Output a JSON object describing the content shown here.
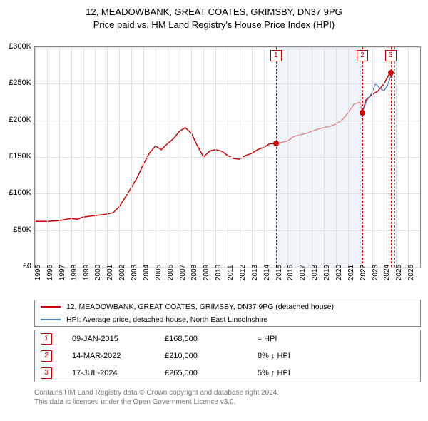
{
  "title_line1": "12, MEADOWBANK, GREAT COATES, GRIMSBY, DN37 9PG",
  "title_line2": "Price paid vs. HM Land Registry's House Price Index (HPI)",
  "chart": {
    "type": "line",
    "x_min": 1995,
    "x_max": 2027,
    "y_min": 0,
    "y_max": 300000,
    "y_tick_step": 50000,
    "y_prefix": "£",
    "y_suffix": "K",
    "y_ticks": [
      "£0",
      "£50K",
      "£100K",
      "£150K",
      "£200K",
      "£250K",
      "£300K"
    ],
    "x_ticks": [
      1995,
      1996,
      1997,
      1998,
      1999,
      2000,
      2001,
      2002,
      2003,
      2004,
      2005,
      2006,
      2007,
      2008,
      2009,
      2010,
      2011,
      2012,
      2013,
      2014,
      2015,
      2016,
      2017,
      2018,
      2019,
      2020,
      2021,
      2022,
      2023,
      2024,
      2025,
      2026
    ],
    "background_color": "#ffffff",
    "grid_color": "#e0e0e0",
    "border_color": "#888888",
    "shade_bands": [
      {
        "from": 2015.02,
        "to": 2022.2,
        "color": "#e6ecf5"
      }
    ],
    "today_line": {
      "x": 2024.85,
      "color": "#777777",
      "dash": true
    },
    "series": [
      {
        "name": "12, MEADOWBANK, GREAT COATES, GRIMSBY, DN37 9PG (detached house)",
        "color": "#cc0000",
        "width": 1.5,
        "points": [
          [
            1995,
            62000
          ],
          [
            1996,
            62000
          ],
          [
            1997,
            63000
          ],
          [
            1998,
            66000
          ],
          [
            1998.5,
            65000
          ],
          [
            1999,
            68000
          ],
          [
            2000,
            70000
          ],
          [
            2001,
            72000
          ],
          [
            2001.5,
            74000
          ],
          [
            2002,
            82000
          ],
          [
            2002.5,
            95000
          ],
          [
            2003,
            108000
          ],
          [
            2003.5,
            122000
          ],
          [
            2004,
            140000
          ],
          [
            2004.5,
            155000
          ],
          [
            2005,
            165000
          ],
          [
            2005.5,
            160000
          ],
          [
            2006,
            168000
          ],
          [
            2006.5,
            175000
          ],
          [
            2007,
            185000
          ],
          [
            2007.5,
            190000
          ],
          [
            2008,
            182000
          ],
          [
            2008.5,
            165000
          ],
          [
            2009,
            150000
          ],
          [
            2009.5,
            158000
          ],
          [
            2010,
            160000
          ],
          [
            2010.5,
            158000
          ],
          [
            2011,
            152000
          ],
          [
            2011.5,
            148000
          ],
          [
            2012,
            147000
          ],
          [
            2012.5,
            152000
          ],
          [
            2013,
            155000
          ],
          [
            2013.5,
            160000
          ],
          [
            2014,
            163000
          ],
          [
            2014.5,
            168000
          ],
          [
            2015,
            168500
          ],
          [
            2015.5,
            170000
          ],
          [
            2016,
            172000
          ],
          [
            2016.5,
            178000
          ],
          [
            2017,
            180000
          ],
          [
            2017.5,
            182000
          ],
          [
            2018,
            185000
          ],
          [
            2018.5,
            188000
          ],
          [
            2019,
            190000
          ],
          [
            2019.5,
            192000
          ],
          [
            2020,
            195000
          ],
          [
            2020.5,
            200000
          ],
          [
            2021,
            210000
          ],
          [
            2021.5,
            222000
          ],
          [
            2022,
            225000
          ],
          [
            2022.2,
            210000
          ],
          [
            2022.5,
            228000
          ],
          [
            2023,
            235000
          ],
          [
            2023.5,
            240000
          ],
          [
            2024,
            250000
          ],
          [
            2024.5,
            265000
          ],
          [
            2024.55,
            265000
          ]
        ]
      },
      {
        "name": "HPI: Average price, detached house, North East Lincolnshire",
        "color": "#4a7ec8",
        "width": 1.3,
        "points": [
          [
            2022.2,
            210000
          ],
          [
            2022.5,
            225000
          ],
          [
            2023,
            238000
          ],
          [
            2023.3,
            250000
          ],
          [
            2023.6,
            245000
          ],
          [
            2024,
            240000
          ],
          [
            2024.3,
            248000
          ],
          [
            2024.55,
            260000
          ],
          [
            2024.7,
            258000
          ]
        ]
      }
    ],
    "event_markers": [
      {
        "n": "1",
        "x": 2015.02,
        "price_y": 168500
      },
      {
        "n": "2",
        "x": 2022.2,
        "price_y": 210000
      },
      {
        "n": "3",
        "x": 2024.55,
        "price_y": 265000
      }
    ]
  },
  "legend": {
    "items": [
      {
        "color": "#cc0000",
        "label": "12, MEADOWBANK, GREAT COATES, GRIMSBY, DN37 9PG (detached house)"
      },
      {
        "color": "#4a7ec8",
        "label": "HPI: Average price, detached house, North East Lincolnshire"
      }
    ]
  },
  "events_table": {
    "rows": [
      {
        "n": "1",
        "date": "09-JAN-2015",
        "price": "£168,500",
        "compare": "≈ HPI"
      },
      {
        "n": "2",
        "date": "14-MAR-2022",
        "price": "£210,000",
        "compare": "8% ↓ HPI"
      },
      {
        "n": "3",
        "date": "17-JUL-2024",
        "price": "£265,000",
        "compare": "5% ↑ HPI"
      }
    ]
  },
  "footer_line1": "Contains HM Land Registry data © Crown copyright and database right 2024.",
  "footer_line2": "This data is licensed under the Open Government Licence v3.0."
}
